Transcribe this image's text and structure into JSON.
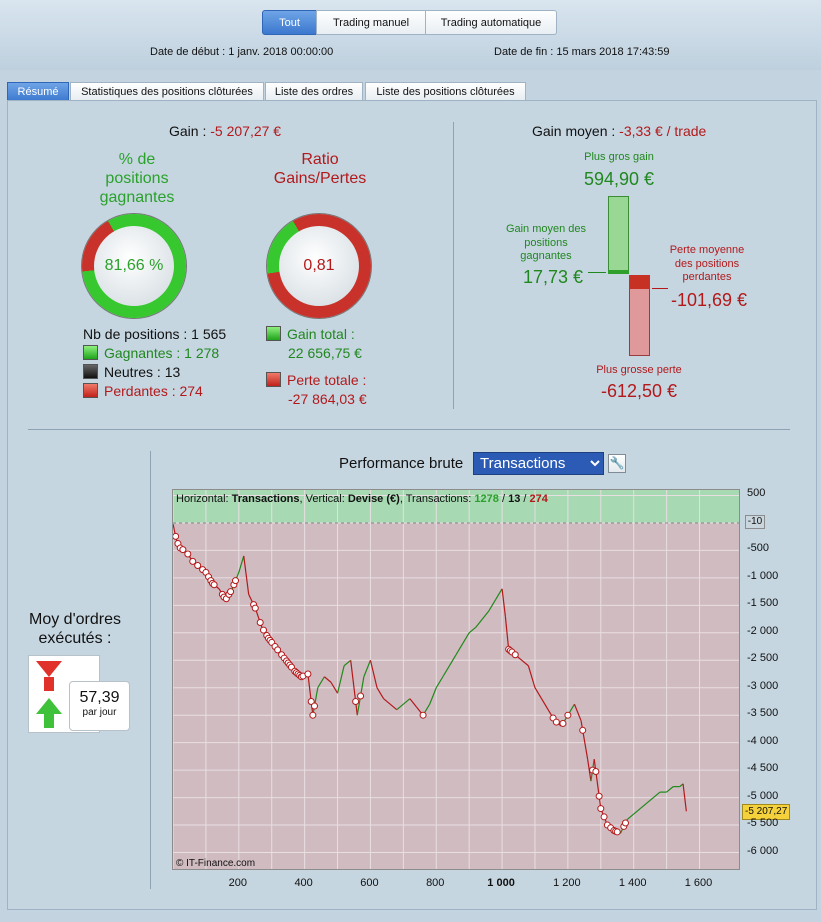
{
  "top": {
    "segments": [
      "Tout",
      "Trading manuel",
      "Trading automatique"
    ],
    "start_label": "Date de début :",
    "start_value": "1 janv. 2018 00:00:00",
    "end_label": "Date de fin :",
    "end_value": "15 mars 2018 17:43:59"
  },
  "tabs": [
    "Résumé",
    "Statistiques des positions clôturées",
    "Liste des ordres",
    "Liste des positions clôturées"
  ],
  "summary": {
    "gain_label": "Gain :",
    "gain_value": "-5 207,27 €",
    "pct_title": "% de positions gagnantes",
    "pct_value": "81,66 %",
    "ratio_title": "Ratio Gains/Pertes",
    "ratio_value": "0,81",
    "nb_positions": "Nb de positions : 1 565",
    "gagnantes": "Gagnantes : 1 278",
    "neutres": "Neutres : 13",
    "perdantes": "Perdantes : 274",
    "gain_total_label": "Gain total :",
    "gain_total_value": "22 656,75 €",
    "perte_totale_label": "Perte totale :",
    "perte_totale_value": "-27 864,03 €",
    "win_fraction": 0.8166,
    "ratio_fraction": 0.81
  },
  "gain_moyen": {
    "label": "Gain moyen :",
    "value": "-3,33 € / trade",
    "plus_gros_gain_label": "Plus gros gain",
    "plus_gros_gain_value": "594,90 €",
    "gain_moyen_label": "Gain moyen des positions gagnantes",
    "gain_moyen_value": "17,73 €",
    "perte_moyenne_label": "Perte moyenne des positions perdantes",
    "perte_moyenne_value": "-101,69 €",
    "plus_grosse_perte_label": "Plus grosse perte",
    "plus_grosse_perte_value": "-612,50 €"
  },
  "ordres": {
    "title": "Moy d'ordres exécutés :",
    "value": "57,39",
    "unit": "par jour"
  },
  "performance": {
    "title": "Performance brute",
    "selected": "Transactions",
    "header_h_label": "Horizontal:",
    "header_h_value": "Transactions",
    "header_v_label": "Vertical:",
    "header_v_value": "Devise (€)",
    "header_t_label": "Transactions:",
    "header_wins": "1278",
    "header_neutral": "13",
    "header_losses": "274",
    "copyright": "© IT-Finance.com",
    "current_label": "-5 207,27",
    "zero_marker_label": "-10"
  },
  "chart_data": {
    "type": "line",
    "xlabel": "",
    "ylabel": "",
    "xlim": [
      0,
      1720
    ],
    "ylim": [
      -6300,
      600
    ],
    "x_ticks": [
      "200",
      "400",
      "600",
      "800",
      "1 000",
      "1 200",
      "1 400",
      "1 600"
    ],
    "y_ticks": [
      "500",
      "-10",
      "-500",
      "-1 000",
      "-1 500",
      "-2 000",
      "-2 500",
      "-3 000",
      "-3 500",
      "-4 000",
      "-4 500",
      "-5 000",
      "-5 500",
      "-6 000"
    ],
    "series": [
      {
        "x": [
          0,
          10,
          20,
          40,
          60,
          80,
          100,
          120,
          140,
          160,
          180,
          200,
          215,
          230,
          250,
          270,
          290,
          310,
          330,
          350,
          370,
          390,
          410,
          425,
          440,
          460,
          480,
          500,
          520,
          540,
          560,
          580,
          600,
          620,
          640,
          660,
          680,
          700,
          720,
          740,
          760,
          780,
          800,
          820,
          840,
          860,
          880,
          900,
          920,
          940,
          960,
          980,
          1000,
          1010,
          1020,
          1040,
          1060,
          1080,
          1100,
          1120,
          1140,
          1160,
          1180,
          1200,
          1220,
          1240,
          1260,
          1270,
          1280,
          1300,
          1320,
          1340,
          1360,
          1380,
          1400,
          1420,
          1440,
          1460,
          1480,
          1500,
          1520,
          1540,
          1550,
          1560
        ],
        "y": [
          -20,
          -300,
          -450,
          -520,
          -700,
          -800,
          -900,
          -1100,
          -1200,
          -1400,
          -1200,
          -900,
          -600,
          -1300,
          -1550,
          -1900,
          -2100,
          -2250,
          -2400,
          -2550,
          -2700,
          -2800,
          -2750,
          -3500,
          -3000,
          -2800,
          -2900,
          -3100,
          -2600,
          -2500,
          -3500,
          -2800,
          -2500,
          -3000,
          -3200,
          -3300,
          -3400,
          -3300,
          -3200,
          -3350,
          -3500,
          -3300,
          -3000,
          -2800,
          -2600,
          -2400,
          -2200,
          -2000,
          -1900,
          -1750,
          -1600,
          -1400,
          -1200,
          -1700,
          -2300,
          -2400,
          -2500,
          -2600,
          -3000,
          -3200,
          -3400,
          -3600,
          -3700,
          -3500,
          -3300,
          -3600,
          -4300,
          -4700,
          -4300,
          -5200,
          -5500,
          -5600,
          -5650,
          -5400,
          -5300,
          -5200,
          -5100,
          -5000,
          -4900,
          -4900,
          -4800,
          -4800,
          -4750,
          -5250
        ]
      }
    ],
    "loss_markers_x": [
      8,
      15,
      22,
      30,
      45,
      60,
      75,
      90,
      100,
      108,
      115,
      120,
      125,
      150,
      155,
      162,
      170,
      175,
      185,
      190,
      245,
      250,
      265,
      275,
      285,
      290,
      295,
      300,
      310,
      318,
      330,
      338,
      345,
      350,
      355,
      360,
      370,
      375,
      380,
      385,
      390,
      395,
      410,
      420,
      425,
      430,
      555,
      570,
      760,
      1020,
      1025,
      1030,
      1040,
      1155,
      1165,
      1185,
      1200,
      1245,
      1275,
      1285,
      1295,
      1300,
      1310,
      1320,
      1330,
      1340,
      1345,
      1350,
      1370,
      1375
    ],
    "zero_line": 0
  }
}
